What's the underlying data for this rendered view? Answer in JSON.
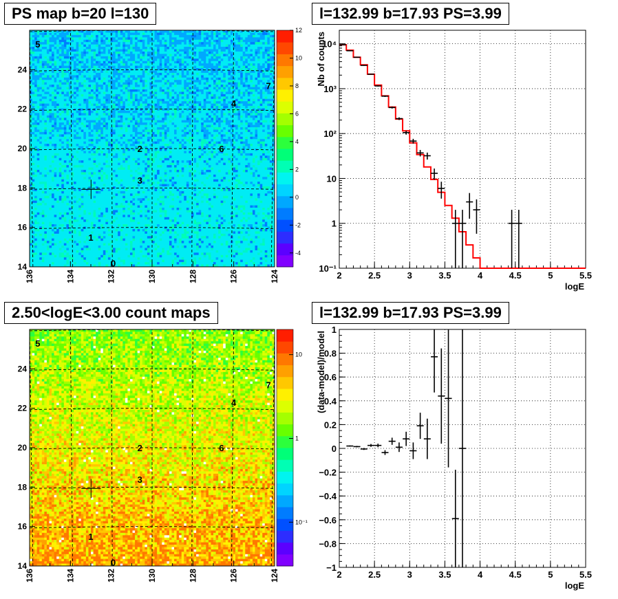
{
  "panels": {
    "map1": {
      "title": "PS map b=20 l=130"
    },
    "spec1": {
      "title": "l=132.99 b=17.93 PS=3.99"
    },
    "map2": {
      "title": "2.50<logE<3.00 count maps"
    },
    "spec2": {
      "title": "l=132.99 b=17.93 PS=3.99"
    }
  },
  "chart_data": [
    {
      "type": "heatmap",
      "title": "PS map b=20 l=130",
      "x_axis": {
        "ticks": [
          "136",
          "134",
          "132",
          "130",
          "128",
          "126",
          "124"
        ],
        "range": [
          136,
          124
        ]
      },
      "y_axis": {
        "ticks": [
          "14",
          "16",
          "18",
          "20",
          "22",
          "24"
        ],
        "range": [
          14,
          26
        ]
      },
      "colorbar": {
        "ticks": [
          "12",
          "10",
          "8",
          "6",
          "4",
          "2",
          "0",
          "-2",
          "-4"
        ],
        "range": [
          -5,
          12
        ]
      },
      "sources": [
        {
          "label": "5",
          "l": 135.6,
          "b": 25.3
        },
        {
          "label": "7",
          "l": 124.3,
          "b": 23.2
        },
        {
          "label": "4",
          "l": 126.0,
          "b": 22.3
        },
        {
          "label": "2",
          "l": 130.6,
          "b": 20.0
        },
        {
          "label": "6",
          "l": 126.6,
          "b": 20.0
        },
        {
          "label": "3",
          "l": 130.6,
          "b": 18.4
        },
        {
          "label": "1",
          "l": 133.0,
          "b": 15.5
        },
        {
          "label": "0",
          "l": 131.9,
          "b": 14.2
        }
      ],
      "marker": {
        "l": 132.99,
        "b": 17.93
      }
    },
    {
      "type": "line",
      "title": "l=132.99 b=17.93 PS=3.99",
      "xlabel": "logE",
      "ylabel": "Nb of counts",
      "xlim": [
        2,
        5.5
      ],
      "ylim": [
        0.1,
        20000
      ],
      "log_y": true,
      "x_ticks": [
        "2",
        "2.5",
        "3",
        "3.5",
        "4",
        "4.5",
        "5",
        "5.5"
      ],
      "y_ticks": [
        "10⁴",
        "10³",
        "10²",
        "10",
        "1",
        "10⁻¹"
      ],
      "grid": true,
      "model": {
        "color": "#ff0000",
        "edges": [
          2,
          2.1,
          2.2,
          2.3,
          2.4,
          2.5,
          2.6,
          2.7,
          2.8,
          2.9,
          3.0,
          3.1,
          3.2,
          3.3,
          3.4,
          3.5,
          3.6,
          3.7,
          3.8,
          3.9,
          4.0,
          4.1,
          4.2,
          4.3,
          4.4,
          4.5,
          4.6,
          4.7,
          4.8,
          4.9,
          5.0,
          5.1,
          5.2,
          5.3,
          5.4,
          5.5
        ],
        "values": [
          9500,
          7200,
          5000,
          3400,
          2100,
          1200,
          690,
          390,
          210,
          115,
          62,
          34,
          18,
          9.5,
          4.9,
          2.5,
          1.3,
          0.65,
          0.33,
          0.17,
          0.1,
          0.1,
          0.1,
          0.1,
          0.1,
          0.1,
          0.1,
          0.1,
          0.1,
          0.1,
          0.1,
          0.1,
          0.1,
          0.1,
          0.1
        ]
      },
      "data": {
        "color": "#000000",
        "points": [
          {
            "x": 2.05,
            "y": 9500
          },
          {
            "x": 2.15,
            "y": 7000
          },
          {
            "x": 2.25,
            "y": 5000
          },
          {
            "x": 2.35,
            "y": 3300
          },
          {
            "x": 2.45,
            "y": 2100
          },
          {
            "x": 2.55,
            "y": 1150
          },
          {
            "x": 2.65,
            "y": 680
          },
          {
            "x": 2.75,
            "y": 380
          },
          {
            "x": 2.85,
            "y": 215
          },
          {
            "x": 2.95,
            "y": 105
          },
          {
            "x": 3.05,
            "y": 68
          },
          {
            "x": 3.15,
            "y": 37
          },
          {
            "x": 3.25,
            "y": 32
          },
          {
            "x": 3.35,
            "y": 13
          },
          {
            "x": 3.45,
            "y": 6
          },
          {
            "x": 3.65,
            "y": 1
          },
          {
            "x": 3.75,
            "y": 1
          },
          {
            "x": 3.85,
            "y": 3
          },
          {
            "x": 3.95,
            "y": 2
          },
          {
            "x": 4.45,
            "y": 1
          },
          {
            "x": 4.55,
            "y": 1
          }
        ]
      }
    },
    {
      "type": "heatmap",
      "title": "2.50<logE<3.00 count maps",
      "x_axis": {
        "ticks": [
          "136",
          "134",
          "132",
          "130",
          "128",
          "126",
          "124"
        ],
        "range": [
          136,
          124
        ]
      },
      "y_axis": {
        "ticks": [
          "14",
          "16",
          "18",
          "20",
          "22",
          "24"
        ],
        "range": [
          14,
          26
        ]
      },
      "colorbar": {
        "ticks": [
          "10",
          "1",
          "10⁻¹"
        ],
        "scale": "log",
        "range": [
          0.03,
          20
        ]
      },
      "sources": [
        {
          "label": "5",
          "l": 135.6,
          "b": 25.3
        },
        {
          "label": "7",
          "l": 124.3,
          "b": 23.2
        },
        {
          "label": "4",
          "l": 126.0,
          "b": 22.3
        },
        {
          "label": "2",
          "l": 130.6,
          "b": 20.0
        },
        {
          "label": "6",
          "l": 126.6,
          "b": 20.0
        },
        {
          "label": "3",
          "l": 130.6,
          "b": 18.4
        },
        {
          "label": "1",
          "l": 133.0,
          "b": 15.5
        },
        {
          "label": "0",
          "l": 131.9,
          "b": 14.2
        }
      ],
      "marker": {
        "l": 132.99,
        "b": 17.93
      }
    },
    {
      "type": "scatter",
      "title": "l=132.99 b=17.93 PS=3.99",
      "xlabel": "logE",
      "ylabel": "(data-model)/model",
      "xlim": [
        2,
        5.5
      ],
      "ylim": [
        -1,
        1
      ],
      "x_ticks": [
        "2",
        "2.5",
        "3",
        "3.5",
        "4",
        "4.5",
        "5",
        "5.5"
      ],
      "y_ticks": [
        "1",
        "0.8",
        "0.6",
        "0.4",
        "0.2",
        "0",
        "−0.2",
        "−0.4",
        "−0.6",
        "−0.8",
        "−1"
      ],
      "grid": true,
      "points": [
        {
          "x": 2.15,
          "y": 0.02,
          "err": 0.005
        },
        {
          "x": 2.25,
          "y": 0.015,
          "err": 0.006
        },
        {
          "x": 2.35,
          "y": -0.005,
          "err": 0.008
        },
        {
          "x": 2.45,
          "y": 0.025,
          "err": 0.012
        },
        {
          "x": 2.55,
          "y": 0.025,
          "err": 0.015
        },
        {
          "x": 2.65,
          "y": -0.035,
          "err": 0.02
        },
        {
          "x": 2.75,
          "y": 0.06,
          "err": 0.03
        },
        {
          "x": 2.85,
          "y": 0.01,
          "err": 0.04
        },
        {
          "x": 2.95,
          "y": 0.08,
          "err": 0.06
        },
        {
          "x": 3.05,
          "y": -0.02,
          "err": 0.07
        },
        {
          "x": 3.15,
          "y": 0.19,
          "err": 0.11
        },
        {
          "x": 3.25,
          "y": 0.08,
          "err": 0.17
        },
        {
          "x": 3.35,
          "y": 0.77,
          "err": 0.3
        },
        {
          "x": 3.45,
          "y": 0.44,
          "err": 0.4
        },
        {
          "x": 3.55,
          "y": 0.42,
          "err": 0.58
        },
        {
          "x": 3.65,
          "y": -0.59,
          "err": 0.41
        },
        {
          "x": 3.75,
          "y": 0.0,
          "err": 1.2
        }
      ]
    }
  ]
}
